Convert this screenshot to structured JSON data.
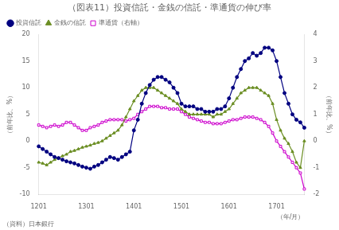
{
  "chart_data": {
    "type": "line",
    "title": "（図表11）投資信託・金銭の信託・準通貨の伸び率",
    "y_label": "（前年比、%）",
    "y2_label": "（前年比、%）",
    "x_label": "（年/月）",
    "source": "（資料）日本銀行",
    "categories": [
      "1201",
      null,
      null,
      null,
      null,
      null,
      null,
      null,
      null,
      null,
      null,
      null,
      "1301",
      null,
      null,
      null,
      null,
      null,
      null,
      null,
      null,
      null,
      null,
      null,
      "1401",
      null,
      null,
      null,
      null,
      null,
      null,
      null,
      null,
      null,
      null,
      null,
      "1501",
      null,
      null,
      null,
      null,
      null,
      null,
      null,
      null,
      null,
      null,
      null,
      "1601",
      null,
      null,
      null,
      null,
      null,
      null,
      null,
      null,
      null,
      null,
      null,
      "1701",
      null,
      null,
      null,
      null,
      null,
      null,
      null
    ],
    "ylim": [
      -10,
      20
    ],
    "yticks": [
      -10,
      -5,
      0,
      5,
      10,
      15,
      20
    ],
    "y2lim": [
      -2,
      4
    ],
    "y2ticks": [
      -2,
      -1,
      0,
      1,
      2,
      3,
      4
    ],
    "grid": false,
    "legend": "upper left",
    "series": [
      {
        "name": "投資信託",
        "color": "#000080",
        "marker": "circle",
        "values": [
          -1.0,
          -1.5,
          -2.0,
          -2.5,
          -3.0,
          -3.2,
          -3.5,
          -3.8,
          -4.0,
          -4.2,
          -4.5,
          -4.8,
          -5.0,
          -5.2,
          -4.8,
          -4.5,
          -4.0,
          -3.5,
          -3.0,
          -3.2,
          -3.5,
          -3.0,
          -2.5,
          -2.0,
          2.0,
          4.0,
          7.0,
          9.0,
          10.5,
          11.5,
          12.0,
          12.0,
          11.5,
          11.0,
          10.0,
          9.0,
          7.0,
          6.5,
          6.5,
          6.5,
          6.0,
          6.0,
          5.5,
          5.5,
          5.5,
          6.0,
          6.0,
          6.5,
          8.0,
          10.0,
          12.0,
          13.5,
          15.0,
          15.5,
          16.5,
          16.0,
          16.5,
          17.5,
          17.5,
          17.0,
          15.0,
          12.0,
          9.0,
          7.0,
          5.0,
          4.0,
          3.5,
          2.5
        ]
      },
      {
        "name": "金銭の信託",
        "color": "#6b8e23",
        "marker": "triangle",
        "values": [
          -4.0,
          -4.2,
          -4.5,
          -4.0,
          -3.5,
          -3.2,
          -2.8,
          -2.5,
          -2.0,
          -1.8,
          -1.5,
          -1.2,
          -1.0,
          -0.8,
          -0.5,
          -0.3,
          0.0,
          0.5,
          1.0,
          1.5,
          2.0,
          3.0,
          4.5,
          6.0,
          7.5,
          8.5,
          9.5,
          10.0,
          10.0,
          10.0,
          9.5,
          9.0,
          8.5,
          8.0,
          7.5,
          7.0,
          6.0,
          5.5,
          5.0,
          5.0,
          5.0,
          5.0,
          5.0,
          5.0,
          4.5,
          5.0,
          5.0,
          5.5,
          6.0,
          7.0,
          8.0,
          9.0,
          9.5,
          10.0,
          10.0,
          10.0,
          9.5,
          9.0,
          8.5,
          7.0,
          4.0,
          2.0,
          0.5,
          -0.5,
          -2.0,
          -4.0,
          -5.0,
          0.0
        ]
      },
      {
        "name": "準通貨（右軸）",
        "color": "#cc00cc",
        "marker": "square",
        "axis": "y2",
        "values": [
          0.6,
          0.55,
          0.5,
          0.55,
          0.6,
          0.55,
          0.6,
          0.7,
          0.7,
          0.6,
          0.5,
          0.4,
          0.4,
          0.5,
          0.55,
          0.6,
          0.7,
          0.75,
          0.8,
          0.8,
          0.8,
          0.8,
          0.75,
          0.8,
          0.85,
          1.0,
          1.1,
          1.2,
          1.3,
          1.3,
          1.3,
          1.25,
          1.25,
          1.2,
          1.2,
          1.2,
          1.1,
          1.0,
          0.9,
          0.85,
          0.8,
          0.75,
          0.7,
          0.7,
          0.65,
          0.65,
          0.65,
          0.7,
          0.75,
          0.8,
          0.8,
          0.85,
          0.9,
          0.9,
          0.9,
          0.85,
          0.8,
          0.7,
          0.55,
          0.3,
          0.0,
          -0.2,
          -0.4,
          -0.6,
          -0.8,
          -1.0,
          -1.2,
          -1.8
        ]
      }
    ]
  }
}
